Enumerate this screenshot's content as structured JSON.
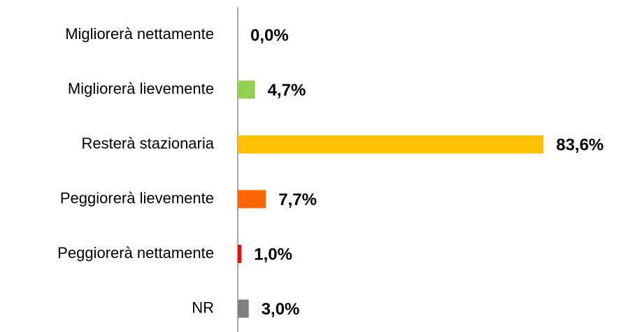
{
  "chart_data": {
    "type": "bar",
    "orientation": "horizontal",
    "categories": [
      "Migliorerà nettamente",
      "Migliorerà lievemente",
      "Resterà stazionaria",
      "Peggiorerà lievemente",
      "Peggiorerà nettamente",
      "NR"
    ],
    "values": [
      0.0,
      4.7,
      83.6,
      7.7,
      1.0,
      3.0
    ],
    "value_labels": [
      "0,0%",
      "4,7%",
      "83,6%",
      "7,7%",
      "1,0%",
      "3,0%"
    ],
    "colors": [
      "#92d050",
      "#92d050",
      "#ffc000",
      "#ff6600",
      "#ff0000",
      "#808080"
    ]
  }
}
